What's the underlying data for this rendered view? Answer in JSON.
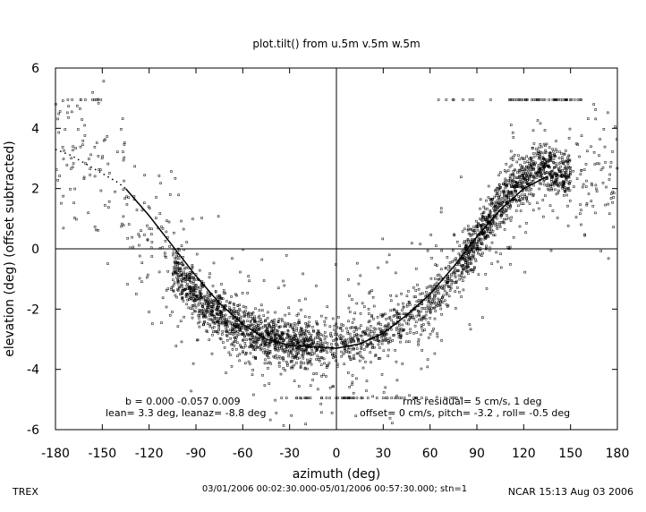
{
  "chart_data": {
    "type": "scatter",
    "title": "plot.tilt() from u.5m v.5m w.5m",
    "xlabel": "azimuth (deg)",
    "ylabel": "elevation (deg)  (offset subtracted)",
    "xlim": [
      -180,
      180
    ],
    "ylim": [
      -6,
      6
    ],
    "xticks": [
      "-180",
      "-150",
      "-120",
      "-90",
      "-60",
      "-30",
      "0",
      "30",
      "60",
      "90",
      "120",
      "150",
      "180"
    ],
    "yticks": [
      "6",
      "4",
      "2",
      "0",
      "-2",
      "-4",
      "-6"
    ],
    "zero_lines": true,
    "series": [
      {
        "mark": "points",
        "color": "#000000",
        "approx_profile": [
          [
            -180,
            3.0
          ],
          [
            -150,
            2.2
          ],
          [
            -120,
            0.5
          ],
          [
            -90,
            -1.6
          ],
          [
            -60,
            -2.7
          ],
          [
            -30,
            -3.1
          ],
          [
            0,
            -3.2
          ],
          [
            30,
            -2.8
          ],
          [
            60,
            -1.8
          ],
          [
            90,
            0.3
          ],
          [
            110,
            1.8
          ],
          [
            130,
            2.8
          ],
          [
            150,
            2.4
          ]
        ],
        "saturation_rows": [
          4.95,
          -4.95
        ]
      },
      {
        "mark": "fit-line",
        "color": "#000000",
        "x": [
          -135,
          -120,
          -105,
          -90,
          -75,
          -60,
          -45,
          -30,
          -15,
          0,
          15,
          30,
          45,
          60,
          75,
          90,
          105,
          120,
          135
        ],
        "y": [
          2.0,
          1.1,
          0.1,
          -0.9,
          -1.8,
          -2.5,
          -3.0,
          -3.2,
          -3.25,
          -3.3,
          -3.15,
          -2.8,
          -2.2,
          -1.5,
          -0.6,
          0.4,
          1.3,
          2.0,
          2.4
        ]
      },
      {
        "mark": "dotted-extension",
        "color": "#000000",
        "x": [
          -180,
          -170,
          -160,
          -150,
          -140,
          -135
        ],
        "y": [
          3.3,
          3.1,
          2.8,
          2.5,
          2.2,
          2.0
        ]
      }
    ],
    "annotations": {
      "b_line": "b =  0.000 -0.057  0.009",
      "lean_line": "lean= 3.3 deg, leanaz= -8.8 deg",
      "rms_line": "rms residual= 5 cm/s, 1 deg",
      "offset_line": "offset= 0 cm/s, pitch= -3.2 , roll= -0.5 deg"
    }
  },
  "footer": {
    "left": "TREX",
    "center": "03/01/2006 00:02:30.000-05/01/2006 00:57:30.000; stn=1",
    "right": "NCAR 15:13 Aug 03 2006"
  }
}
